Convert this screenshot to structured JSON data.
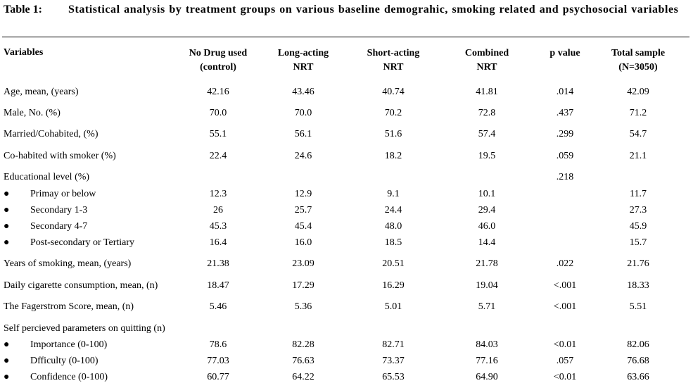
{
  "caption": {
    "label": "Table 1:",
    "text": "Statistical analysis by treatment groups on various baseline demograhic, smoking related and psychosocial variables"
  },
  "headers": {
    "variables": "Variables",
    "no_drug": "No Drug used (control)",
    "long_acting": "Long-acting NRT",
    "short_acting": "Short-acting NRT",
    "combined": "Combined NRT",
    "p_value": "p value",
    "total": "Total sample (N=3050)"
  },
  "rows": [
    {
      "label": "Age, mean, (years)",
      "bullet": false,
      "values": [
        "42.16",
        "43.46",
        "40.74",
        "41.81",
        ".014",
        "42.09"
      ]
    },
    {
      "label": "Male, No. (%)",
      "bullet": false,
      "values": [
        "70.0",
        "70.0",
        "70.2",
        "72.8",
        ".437",
        "71.2"
      ]
    },
    {
      "label": "Married/Cohabited, (%)",
      "bullet": false,
      "values": [
        "55.1",
        "56.1",
        "51.6",
        "57.4",
        ".299",
        "54.7"
      ]
    },
    {
      "label": "Co-habited with smoker (%)",
      "bullet": false,
      "values": [
        "22.4",
        "24.6",
        "18.2",
        "19.5",
        ".059",
        "21.1"
      ]
    },
    {
      "label": "Educational level (%)",
      "bullet": false,
      "values": [
        "",
        "",
        "",
        "",
        ".218",
        ""
      ]
    },
    {
      "label": "Primay or below",
      "bullet": true,
      "values": [
        "12.3",
        "12.9",
        "9.1",
        "10.1",
        "",
        "11.7"
      ]
    },
    {
      "label": "Secondary 1-3",
      "bullet": true,
      "values": [
        "26",
        "25.7",
        "24.4",
        "29.4",
        "",
        "27.3"
      ]
    },
    {
      "label": "Secondary 4-7",
      "bullet": true,
      "values": [
        "45.3",
        "45.4",
        "48.0",
        "46.0",
        "",
        "45.9"
      ]
    },
    {
      "label": "Post-secondary or Tertiary",
      "bullet": true,
      "values": [
        "16.4",
        "16.0",
        "18.5",
        "14.4",
        "",
        "15.7"
      ]
    },
    {
      "label": "Years of smoking, mean, (years)",
      "bullet": false,
      "values": [
        "21.38",
        "23.09",
        "20.51",
        "21.78",
        ".022",
        "21.76"
      ]
    },
    {
      "label": "Daily cigarette consumption, mean, (n)",
      "bullet": false,
      "values": [
        "18.47",
        "17.29",
        "16.29",
        "19.04",
        "<.001",
        "18.33"
      ]
    },
    {
      "label": "The Fagerstrom Score, mean, (n)",
      "bullet": false,
      "values": [
        "5.46",
        "5.36",
        "5.01",
        "5.71",
        "<.001",
        "5.51"
      ]
    },
    {
      "label": "Self percieved parameters on quitting (n)",
      "bullet": false,
      "values": [
        "",
        "",
        "",
        "",
        "",
        ""
      ]
    },
    {
      "label": "Importance (0-100)",
      "bullet": true,
      "values": [
        "78.6",
        "82.28",
        "82.71",
        "84.03",
        "<0.01",
        "82.06"
      ]
    },
    {
      "label": "Dfficulty (0-100)",
      "bullet": true,
      "values": [
        "77.03",
        "76.63",
        "73.37",
        "77.16",
        ".057",
        "76.68"
      ]
    },
    {
      "label": "Confidence (0-100)",
      "bullet": true,
      "values": [
        "60.77",
        "64.22",
        "65.53",
        "64.90",
        "<0.01",
        "63.66"
      ]
    }
  ],
  "bullet_symbol": "●"
}
